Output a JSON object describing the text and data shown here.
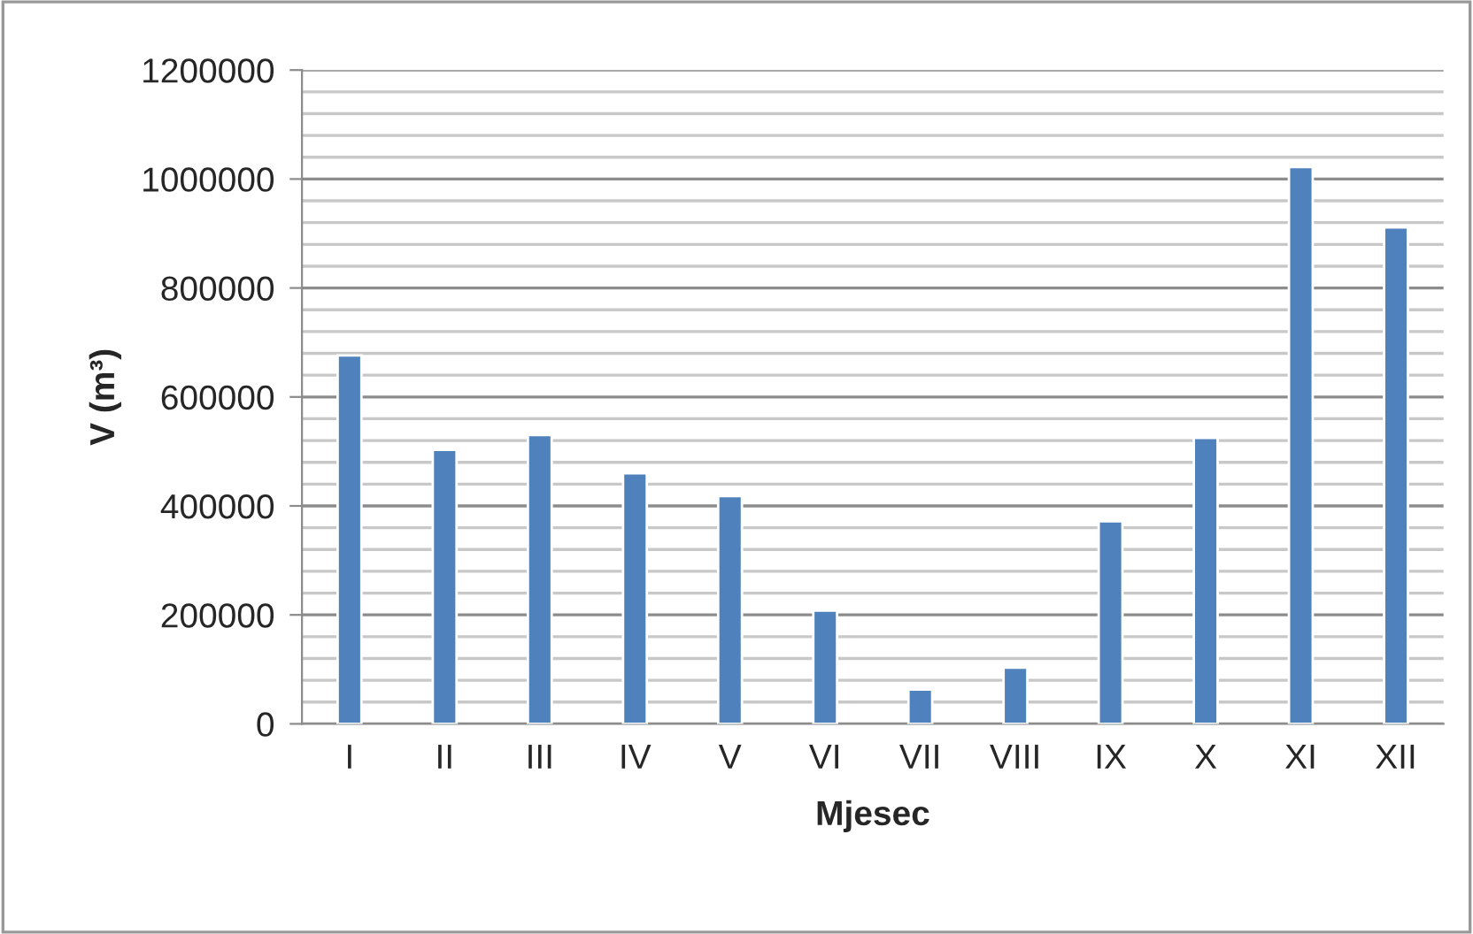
{
  "chart_data": {
    "type": "bar",
    "xlabel": "Mjesec",
    "ylabel": "V (m³)",
    "categories": [
      "I",
      "II",
      "III",
      "IV",
      "V",
      "VI",
      "VII",
      "VIII",
      "IX",
      "X",
      "XI",
      "XII"
    ],
    "values": [
      676000,
      503000,
      530000,
      460000,
      418000,
      208000,
      63000,
      103000,
      372000,
      525000,
      1022000,
      911000
    ],
    "color": "#4f81bd",
    "ylim": [
      0,
      1200000
    ],
    "yticks": [
      0,
      200000,
      400000,
      600000,
      800000,
      1000000,
      1200000
    ],
    "grid": "y",
    "legend": false
  }
}
